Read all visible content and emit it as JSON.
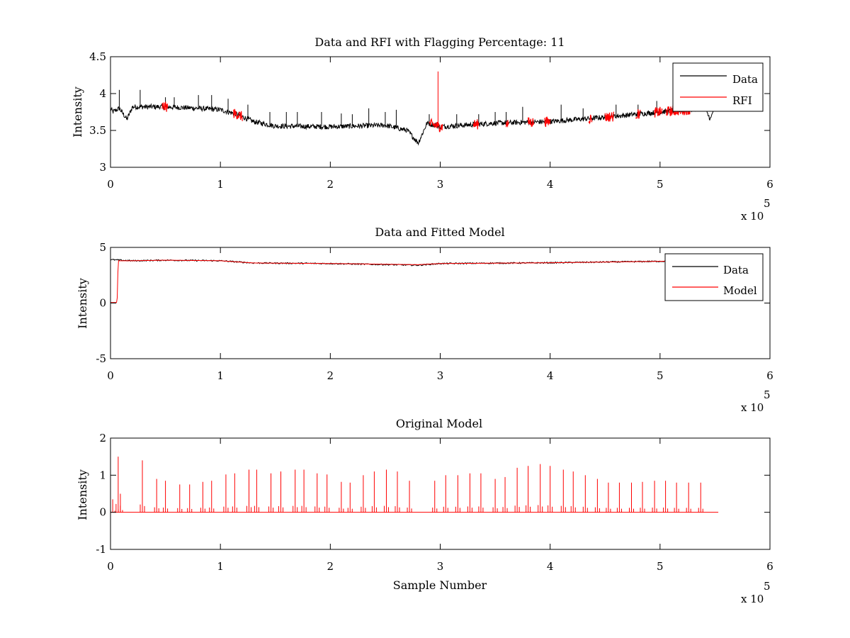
{
  "figure": {
    "background": "#ffffff",
    "axis_color": "#000000",
    "exponent_label": "x 10",
    "exponent_power": "5"
  },
  "chart_data": [
    {
      "type": "line",
      "title": "Data and RFI with Flagging Percentage: 11",
      "xlabel": "",
      "ylabel": "Intensity",
      "xlim": [
        0,
        6
      ],
      "ylim": [
        3,
        4.5
      ],
      "xticks": [
        0,
        1,
        2,
        3,
        4,
        5,
        6
      ],
      "yticks": [
        3,
        3.5,
        4,
        4.5
      ],
      "x_multiplier": 100000,
      "grid": false,
      "legend_position": "top-right",
      "series": [
        {
          "name": "Data",
          "color": "#000000",
          "baseline": [
            [
              0,
              3.8
            ],
            [
              0.02,
              3.75
            ],
            [
              0.08,
              3.8
            ],
            [
              0.15,
              3.65
            ],
            [
              0.2,
              3.82
            ],
            [
              0.5,
              3.82
            ],
            [
              0.8,
              3.8
            ],
            [
              1.0,
              3.78
            ],
            [
              1.15,
              3.72
            ],
            [
              1.3,
              3.62
            ],
            [
              1.5,
              3.56
            ],
            [
              2.0,
              3.55
            ],
            [
              2.5,
              3.57
            ],
            [
              2.7,
              3.5
            ],
            [
              2.8,
              3.33
            ],
            [
              2.88,
              3.6
            ],
            [
              3.0,
              3.55
            ],
            [
              3.5,
              3.6
            ],
            [
              4.0,
              3.62
            ],
            [
              4.5,
              3.68
            ],
            [
              5.0,
              3.75
            ],
            [
              5.4,
              3.8
            ],
            [
              5.46,
              3.65
            ],
            [
              5.5,
              3.85
            ]
          ],
          "spikes": [
            [
              0.08,
              4.05
            ],
            [
              0.27,
              4.05
            ],
            [
              0.5,
              3.95
            ],
            [
              0.58,
              3.95
            ],
            [
              0.8,
              3.98
            ],
            [
              0.92,
              3.98
            ],
            [
              1.07,
              3.93
            ],
            [
              1.25,
              3.85
            ],
            [
              1.45,
              3.75
            ],
            [
              1.6,
              3.75
            ],
            [
              1.7,
              3.75
            ],
            [
              1.92,
              3.75
            ],
            [
              2.1,
              3.73
            ],
            [
              2.2,
              3.72
            ],
            [
              2.35,
              3.8
            ],
            [
              2.5,
              3.75
            ],
            [
              2.6,
              3.78
            ],
            [
              2.9,
              3.72
            ],
            [
              3.15,
              3.72
            ],
            [
              3.35,
              3.72
            ],
            [
              3.5,
              3.75
            ],
            [
              3.6,
              3.75
            ],
            [
              3.75,
              3.82
            ],
            [
              4.1,
              3.85
            ],
            [
              4.3,
              3.8
            ],
            [
              4.6,
              3.85
            ],
            [
              4.8,
              3.85
            ],
            [
              4.97,
              3.9
            ],
            [
              5.25,
              3.88
            ],
            [
              5.38,
              3.88
            ]
          ]
        },
        {
          "name": "RFI",
          "color": "#ff0000",
          "segments": [
            [
              0.47,
              0.52
            ],
            [
              1.12,
              1.2
            ],
            [
              2.9,
              3.02
            ],
            [
              3.3,
              3.35
            ],
            [
              3.6,
              3.62
            ],
            [
              3.8,
              3.85
            ],
            [
              3.95,
              4.0
            ],
            [
              4.35,
              4.38
            ],
            [
              4.5,
              4.58
            ],
            [
              4.78,
              4.82
            ],
            [
              4.95,
              5.02
            ],
            [
              5.05,
              5.28
            ]
          ],
          "spikes": [
            [
              2.98,
              4.3
            ]
          ]
        }
      ]
    },
    {
      "type": "line",
      "title": "Data and Fitted Model",
      "xlabel": "",
      "ylabel": "Intensity",
      "xlim": [
        0,
        6
      ],
      "ylim": [
        -5,
        5
      ],
      "xticks": [
        0,
        1,
        2,
        3,
        4,
        5,
        6
      ],
      "yticks": [
        -5,
        0,
        5
      ],
      "x_multiplier": 100000,
      "grid": false,
      "legend_position": "top-right",
      "series": [
        {
          "name": "Data",
          "color": "#000000",
          "baseline": [
            [
              0,
              3.9
            ],
            [
              0.2,
              3.8
            ],
            [
              0.5,
              3.85
            ],
            [
              1.0,
              3.8
            ],
            [
              1.3,
              3.6
            ],
            [
              2.0,
              3.55
            ],
            [
              2.8,
              3.4
            ],
            [
              3.0,
              3.55
            ],
            [
              4.0,
              3.62
            ],
            [
              5.0,
              3.75
            ],
            [
              5.5,
              3.85
            ]
          ]
        },
        {
          "name": "Model",
          "color": "#ff0000",
          "baseline": [
            [
              0,
              0.05
            ],
            [
              0.06,
              0.05
            ],
            [
              0.07,
              3.8
            ],
            [
              0.2,
              3.8
            ],
            [
              0.5,
              3.85
            ],
            [
              1.0,
              3.8
            ],
            [
              1.3,
              3.6
            ],
            [
              2.0,
              3.55
            ],
            [
              2.8,
              3.45
            ],
            [
              3.0,
              3.55
            ],
            [
              4.0,
              3.62
            ],
            [
              5.0,
              3.75
            ],
            [
              5.5,
              3.85
            ]
          ]
        }
      ]
    },
    {
      "type": "line",
      "title": "Original Model",
      "xlabel": "Sample Number",
      "ylabel": "Intensity",
      "xlim": [
        0,
        6
      ],
      "ylim": [
        -1,
        2
      ],
      "xticks": [
        0,
        1,
        2,
        3,
        4,
        5,
        6
      ],
      "yticks": [
        -1,
        0,
        1,
        2
      ],
      "x_multiplier": 100000,
      "grid": false,
      "legend_position": "none",
      "series": [
        {
          "name": "",
          "color": "#ff0000",
          "xrange": [
            0,
            5.53
          ],
          "spikes": [
            [
              0.02,
              0.35
            ],
            [
              0.07,
              1.5
            ],
            [
              0.09,
              0.5
            ],
            [
              0.29,
              1.4
            ],
            [
              0.42,
              0.9
            ],
            [
              0.5,
              0.85
            ],
            [
              0.63,
              0.75
            ],
            [
              0.72,
              0.75
            ],
            [
              0.84,
              0.82
            ],
            [
              0.92,
              0.85
            ],
            [
              1.05,
              1.02
            ],
            [
              1.13,
              1.05
            ],
            [
              1.26,
              1.15
            ],
            [
              1.33,
              1.15
            ],
            [
              1.46,
              1.05
            ],
            [
              1.55,
              1.1
            ],
            [
              1.68,
              1.15
            ],
            [
              1.76,
              1.15
            ],
            [
              1.88,
              1.05
            ],
            [
              1.97,
              1.02
            ],
            [
              2.1,
              0.82
            ],
            [
              2.18,
              0.8
            ],
            [
              2.3,
              1.0
            ],
            [
              2.4,
              1.1
            ],
            [
              2.51,
              1.15
            ],
            [
              2.61,
              1.1
            ],
            [
              2.72,
              0.85
            ],
            [
              2.95,
              0.85
            ],
            [
              3.05,
              1.0
            ],
            [
              3.16,
              1.0
            ],
            [
              3.27,
              1.05
            ],
            [
              3.37,
              1.05
            ],
            [
              3.5,
              0.9
            ],
            [
              3.59,
              0.95
            ],
            [
              3.7,
              1.2
            ],
            [
              3.8,
              1.25
            ],
            [
              3.91,
              1.3
            ],
            [
              4.0,
              1.25
            ],
            [
              4.12,
              1.15
            ],
            [
              4.21,
              1.1
            ],
            [
              4.32,
              1.0
            ],
            [
              4.43,
              0.9
            ],
            [
              4.53,
              0.8
            ],
            [
              4.63,
              0.8
            ],
            [
              4.74,
              0.8
            ],
            [
              4.84,
              0.82
            ],
            [
              4.95,
              0.85
            ],
            [
              5.05,
              0.85
            ],
            [
              5.15,
              0.8
            ],
            [
              5.26,
              0.8
            ],
            [
              5.37,
              0.8
            ]
          ]
        }
      ]
    }
  ]
}
